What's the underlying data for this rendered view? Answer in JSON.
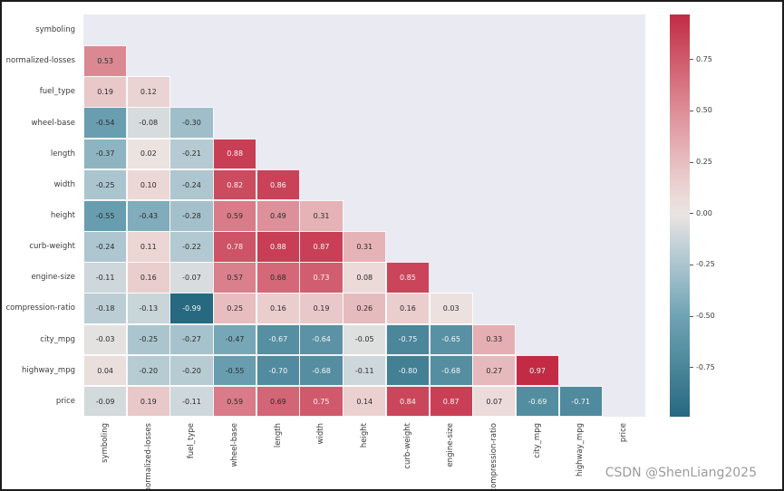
{
  "watermark": "CSDN @ShenLiang2025",
  "chart_data": {
    "type": "heatmap",
    "title": "",
    "description": "Lower-triangular correlation matrix heatmap of automobile features with annotated coefficients and diverging red-teal colorbar",
    "labels": [
      "symboling",
      "normalized-losses",
      "fuel_type",
      "wheel-base",
      "length",
      "width",
      "height",
      "curb-weight",
      "engine-size",
      "compression-ratio",
      "city_mpg",
      "highway_mpg",
      "price"
    ],
    "matrix_lower": [
      [],
      [
        0.53
      ],
      [
        0.19,
        0.12
      ],
      [
        -0.54,
        -0.08,
        -0.3
      ],
      [
        -0.37,
        0.02,
        -0.21,
        0.88
      ],
      [
        -0.25,
        0.1,
        -0.24,
        0.82,
        0.86
      ],
      [
        -0.55,
        -0.43,
        -0.28,
        0.59,
        0.49,
        0.31
      ],
      [
        -0.24,
        0.11,
        -0.22,
        0.78,
        0.88,
        0.87,
        0.31
      ],
      [
        -0.11,
        0.16,
        -0.07,
        0.57,
        0.68,
        0.73,
        0.08,
        0.85
      ],
      [
        -0.18,
        -0.13,
        -0.99,
        0.25,
        0.16,
        0.19,
        0.26,
        0.16,
        0.03
      ],
      [
        -0.03,
        -0.25,
        -0.27,
        -0.47,
        -0.67,
        -0.64,
        -0.05,
        -0.75,
        -0.65,
        0.33
      ],
      [
        0.04,
        -0.2,
        -0.2,
        -0.55,
        -0.7,
        -0.68,
        -0.11,
        -0.8,
        -0.68,
        0.27,
        0.97
      ],
      [
        -0.09,
        0.19,
        -0.11,
        0.59,
        0.69,
        0.75,
        0.14,
        0.84,
        0.87,
        0.07,
        -0.69,
        -0.71
      ]
    ],
    "vmin": -0.99,
    "vmax": 0.97,
    "colorbar_ticks": [
      0.75,
      0.5,
      0.25,
      0.0,
      -0.25,
      -0.5,
      -0.75
    ],
    "colormap_stops": [
      {
        "t": -1.0,
        "color": "#26687f"
      },
      {
        "t": -0.5,
        "color": "#6fa3b4"
      },
      {
        "t": -0.15,
        "color": "#c3d2d8"
      },
      {
        "t": 0.0,
        "color": "#ece5e3"
      },
      {
        "t": 0.15,
        "color": "#ead0cf"
      },
      {
        "t": 0.5,
        "color": "#de8e98"
      },
      {
        "t": 1.0,
        "color": "#c1253f"
      }
    ],
    "plot_bg": "#eaeaf2",
    "grid": false,
    "legend_position": "right-colorbar"
  }
}
